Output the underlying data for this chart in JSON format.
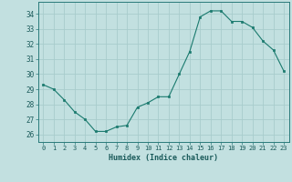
{
  "x": [
    0,
    1,
    2,
    3,
    4,
    5,
    6,
    7,
    8,
    9,
    10,
    11,
    12,
    13,
    14,
    15,
    16,
    17,
    18,
    19,
    20,
    21,
    22,
    23
  ],
  "y": [
    29.3,
    29.0,
    28.3,
    27.5,
    27.0,
    26.2,
    26.2,
    26.5,
    26.6,
    27.8,
    28.1,
    28.5,
    28.5,
    30.0,
    31.5,
    33.8,
    34.2,
    34.2,
    33.5,
    33.5,
    33.1,
    32.2,
    31.6,
    30.2
  ],
  "line_color": "#1a7a6e",
  "marker_color": "#1a7a6e",
  "bg_color": "#c2e0e0",
  "grid_color": "#a8cccc",
  "xlabel": "Humidex (Indice chaleur)",
  "ylabel": "",
  "ylim": [
    25.5,
    34.8
  ],
  "yticks": [
    26,
    27,
    28,
    29,
    30,
    31,
    32,
    33,
    34
  ],
  "xlim": [
    -0.5,
    23.5
  ],
  "xticks": [
    0,
    1,
    2,
    3,
    4,
    5,
    6,
    7,
    8,
    9,
    10,
    11,
    12,
    13,
    14,
    15,
    16,
    17,
    18,
    19,
    20,
    21,
    22,
    23
  ]
}
